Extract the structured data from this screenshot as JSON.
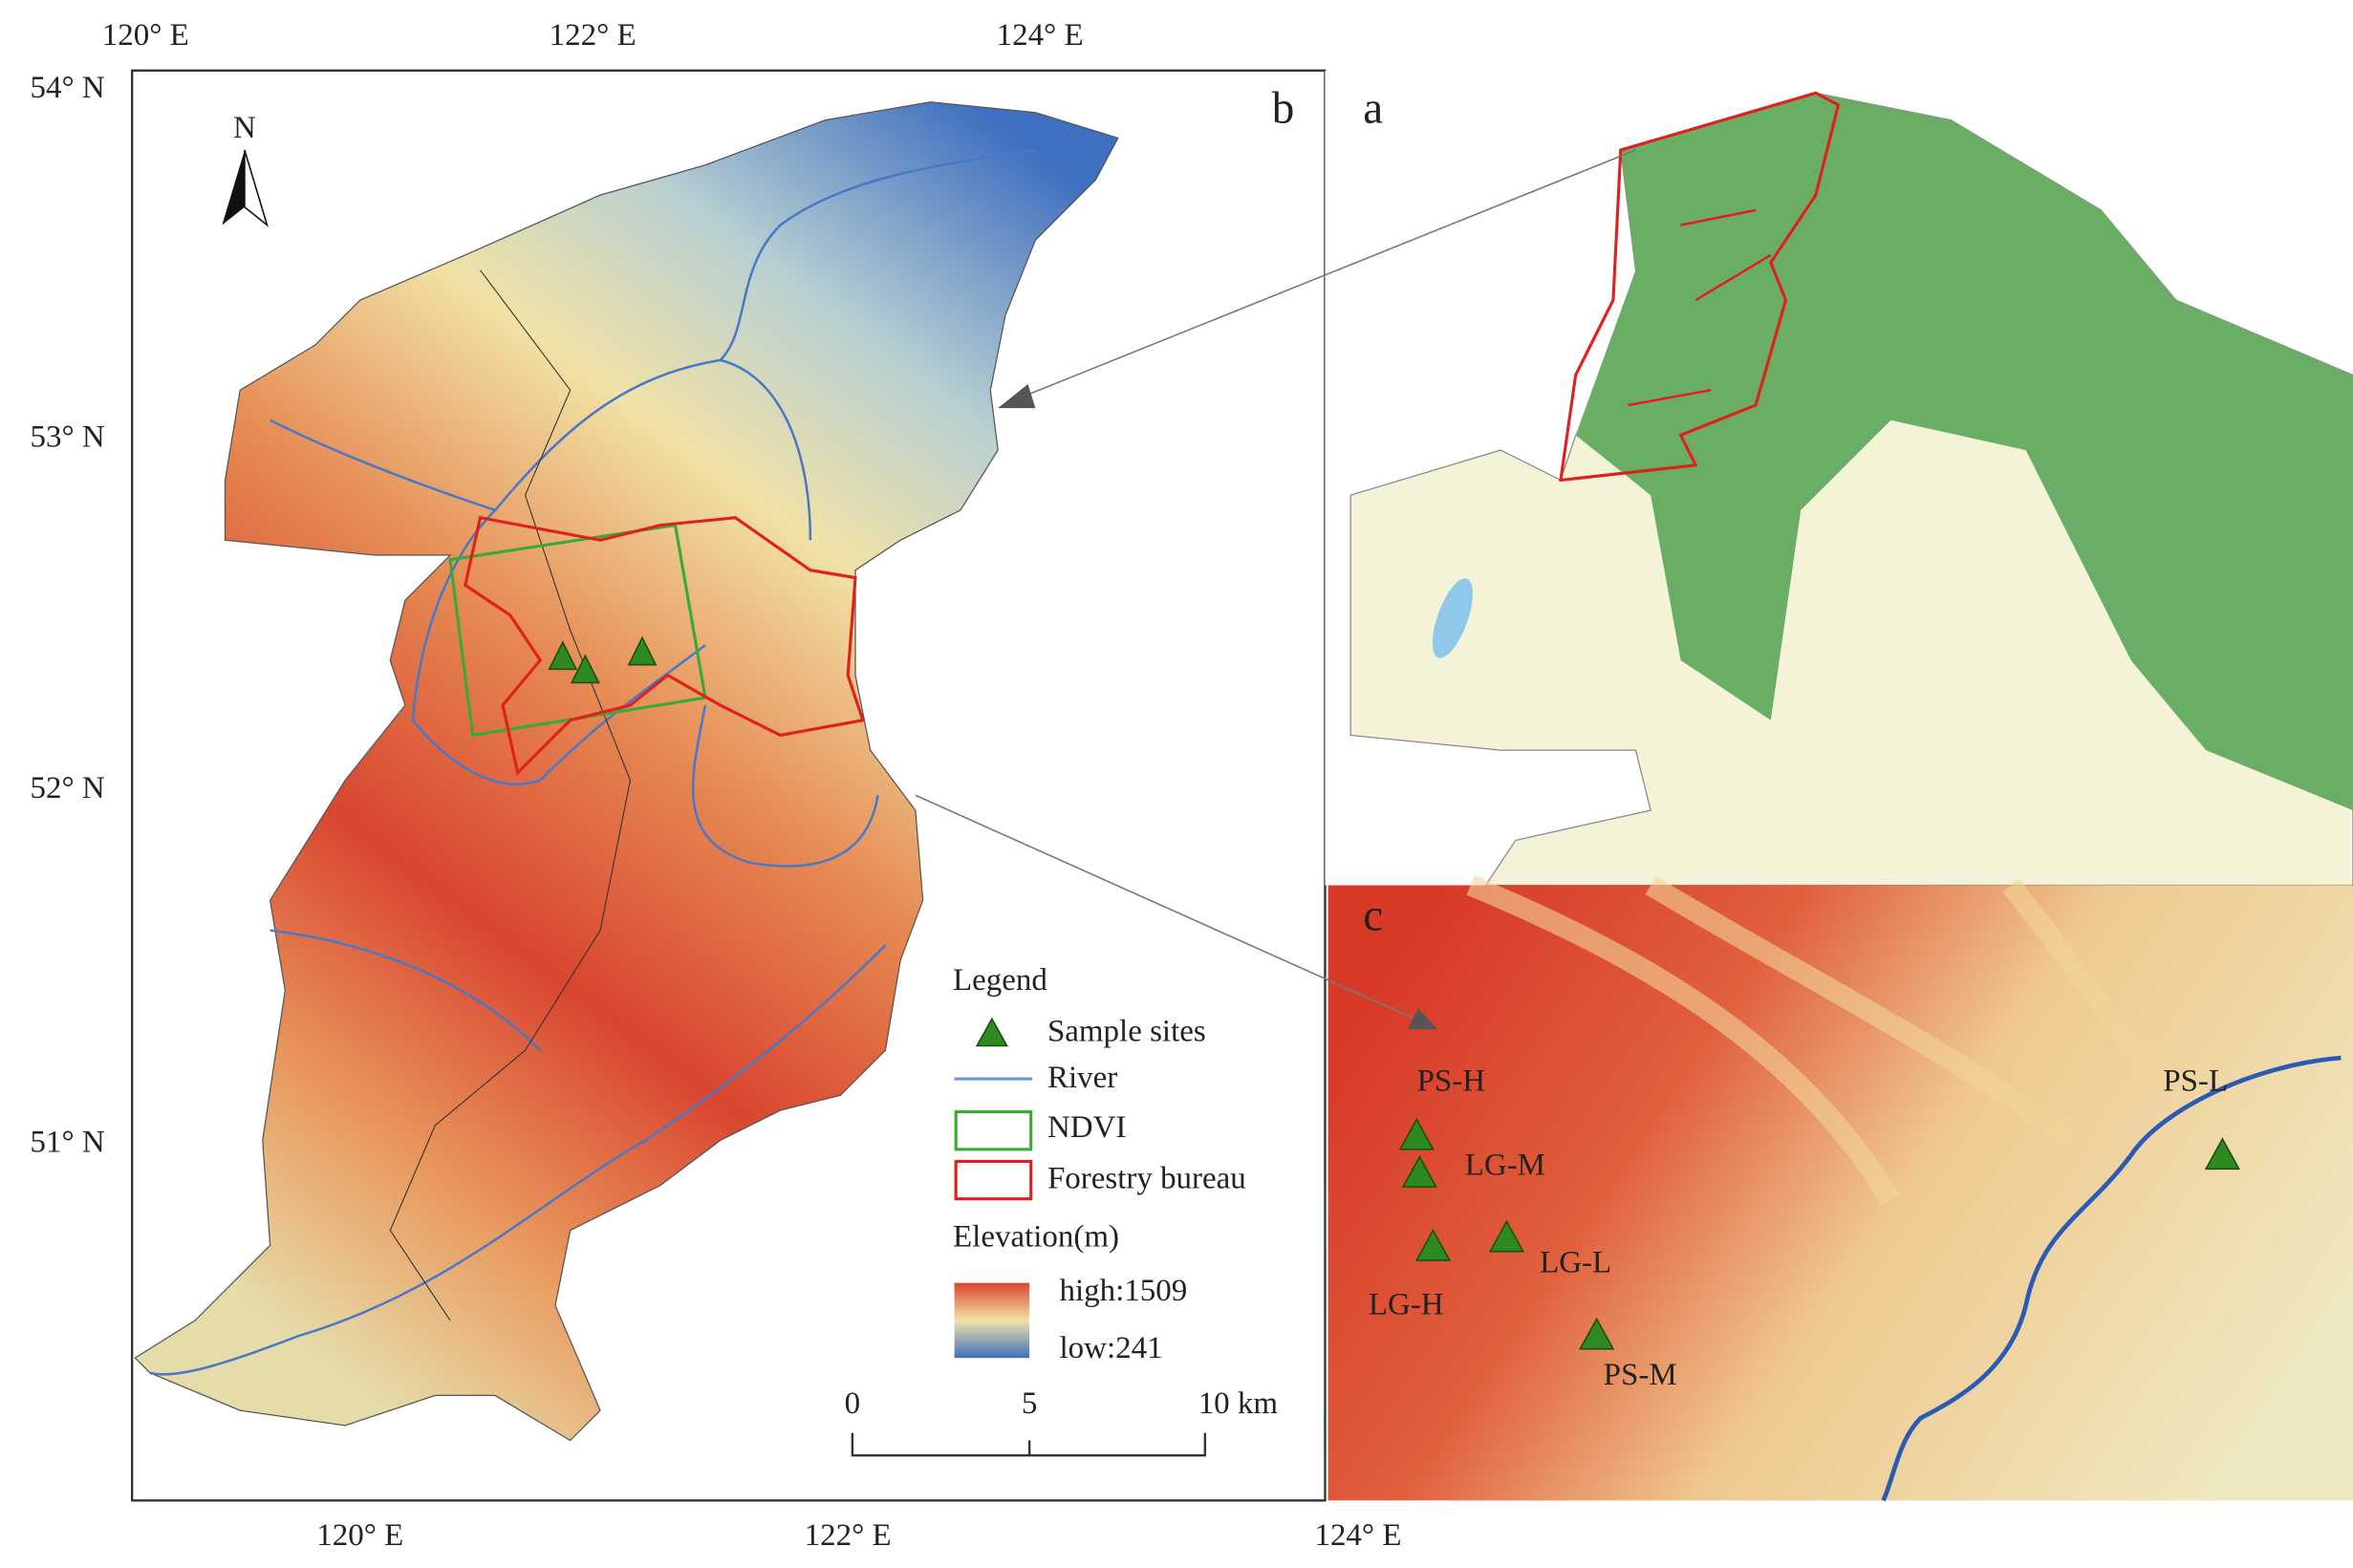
{
  "map": {
    "panel_labels": {
      "a": "a",
      "b": "b",
      "c": "c"
    },
    "north_arrow": "N",
    "longitude_labels_top": [
      "120° E",
      "122° E",
      "124° E"
    ],
    "latitude_labels": [
      "54° N",
      "53° N",
      "52° N",
      "51° N"
    ],
    "longitude_labels_bottom": [
      "120° E",
      "122° E",
      "124° E"
    ],
    "legend": {
      "title": "Legend",
      "items": [
        "Sample sites",
        "River",
        "NDVI",
        "Forestry bureau"
      ],
      "elevation_title": "Elevation(m)",
      "high": "high:1509",
      "low": "low:241"
    },
    "scale_bar": [
      "0",
      "5",
      "10 km"
    ],
    "sites": [
      "PS-H",
      "LG-M",
      "LG-L",
      "LG-H",
      "PS-M",
      "PS-L"
    ]
  }
}
